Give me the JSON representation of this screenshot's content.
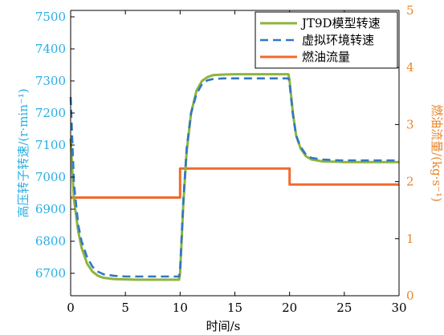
{
  "chart_data": {
    "type": "line",
    "xlabel": "时间/s",
    "ylabel_left": "高压转子转速/(r·min⁻¹)",
    "ylabel_right": "燃油流量/(kg·s⁻¹)",
    "xlim": [
      0,
      30
    ],
    "ylim_left": [
      6630,
      7520
    ],
    "ylim_right": [
      0,
      5
    ],
    "x_ticks": [
      0,
      5,
      10,
      15,
      20,
      25,
      30
    ],
    "y_ticks_left": [
      6700,
      6800,
      6900,
      7000,
      7100,
      7200,
      7300,
      7400,
      7500
    ],
    "y_ticks_right": [
      0,
      1,
      2,
      3,
      4,
      5
    ],
    "grid": false,
    "legend_position": "top-right",
    "colors": {
      "left_axis": "#29aee3",
      "right_axis": "#e8862d",
      "model_speed": "#8fb33d",
      "virtual_speed": "#2f78c4",
      "fuel_flow": "#f06a2b"
    },
    "series": [
      {
        "name": "JT9D模型转速",
        "axis": "left",
        "style": "solid",
        "color": "#8fb33d",
        "x": [
          0,
          0.3,
          0.7,
          1,
          1.5,
          2,
          2.5,
          3,
          4,
          5,
          6,
          8,
          9.9,
          10,
          10.3,
          10.6,
          11,
          11.5,
          12,
          12.5,
          13,
          14,
          15,
          17,
          19.9,
          20,
          20.3,
          20.6,
          21,
          21.5,
          22,
          23,
          24,
          25,
          27,
          30
        ],
        "y": [
          7120,
          6930,
          6830,
          6780,
          6730,
          6705,
          6692,
          6686,
          6682,
          6681,
          6680,
          6680,
          6680,
          6700,
          6920,
          7080,
          7200,
          7270,
          7300,
          7312,
          7318,
          7320,
          7321,
          7321,
          7321,
          7300,
          7200,
          7130,
          7090,
          7065,
          7055,
          7049,
          7048,
          7047,
          7047,
          7047
        ]
      },
      {
        "name": "虚拟环境转速",
        "axis": "left",
        "style": "dashed",
        "color": "#2f78c4",
        "x": [
          0,
          0.3,
          0.7,
          1,
          1.5,
          2,
          2.5,
          3,
          4,
          5,
          6,
          8,
          9.9,
          10,
          10.3,
          10.6,
          11,
          11.5,
          12,
          12.5,
          13,
          14,
          15,
          17,
          19.9,
          20,
          20.3,
          20.6,
          21,
          21.5,
          22,
          23,
          24,
          25,
          27,
          30
        ],
        "y": [
          7250,
          6980,
          6850,
          6800,
          6750,
          6720,
          6705,
          6697,
          6692,
          6690,
          6690,
          6690,
          6690,
          6710,
          6930,
          7090,
          7200,
          7260,
          7290,
          7302,
          7306,
          7308,
          7308,
          7308,
          7308,
          7290,
          7195,
          7130,
          7095,
          7070,
          7060,
          7055,
          7053,
          7052,
          7052,
          7052
        ]
      },
      {
        "name": "燃油流量",
        "axis": "right",
        "style": "solid",
        "color": "#f06a2b",
        "x": [
          0,
          10,
          10,
          20,
          20,
          30
        ],
        "y": [
          1.72,
          1.72,
          2.23,
          2.23,
          1.95,
          1.95
        ]
      }
    ]
  }
}
